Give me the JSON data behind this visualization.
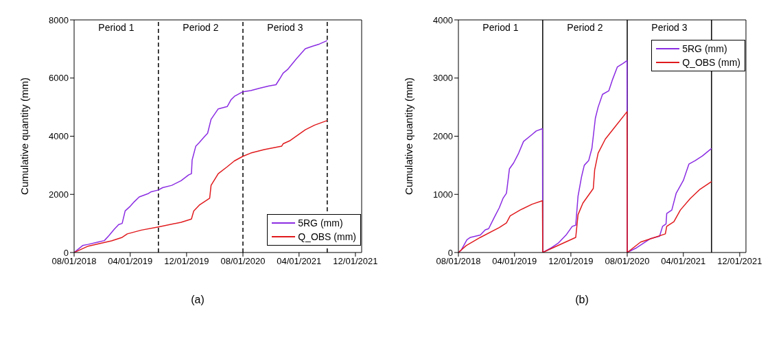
{
  "chart_data": [
    {
      "type": "line",
      "ylabel": "Cumulative quantity (mm)",
      "xlim": [
        "2018-08-01",
        "2021-12-28"
      ],
      "ylim": [
        0,
        8000
      ],
      "yticks": [
        0,
        2000,
        4000,
        6000,
        8000
      ],
      "xticks": [
        {
          "value": "2018-08-01",
          "label": "08/01/2018"
        },
        {
          "value": "2019-04-01",
          "label": "04/01/2019"
        },
        {
          "value": "2019-12-01",
          "label": "12/01/2019"
        },
        {
          "value": "2020-08-01",
          "label": "08/01/2020"
        },
        {
          "value": "2021-04-01",
          "label": "04/01/2021"
        },
        {
          "value": "2021-12-01",
          "label": "12/01/2021"
        }
      ],
      "legend": "bottom right",
      "grid": false,
      "line_style": "solid",
      "ref_lines": [
        {
          "axis": "x",
          "value": "2019-08-01",
          "label": "Period 1",
          "color": "#000000",
          "line_style": "dashed"
        },
        {
          "axis": "x",
          "value": "2020-08-01",
          "label": "Period 2",
          "color": "#000000",
          "line_style": "dashed"
        },
        {
          "axis": "x",
          "value": "2021-08-01",
          "label": "Period 3",
          "color": "#000000",
          "line_style": "dashed"
        }
      ],
      "annotations": [
        "(a)"
      ],
      "series": [
        {
          "name": "5RG (mm)",
          "color": "#8a2be2",
          "x": [
            "2018-08-01",
            "2018-09-07",
            "2018-10-01",
            "2018-11-13",
            "2018-12-10",
            "2019-01-01",
            "2019-01-22",
            "2019-02-10",
            "2019-02-25",
            "2019-03-10",
            "2019-04-01",
            "2019-04-19",
            "2019-05-10",
            "2019-06-19",
            "2019-07-01",
            "2019-08-01",
            "2019-08-19",
            "2019-09-28",
            "2019-11-07",
            "2019-12-10",
            "2019-12-22",
            "2019-12-25",
            "2020-01-10",
            "2020-01-25",
            "2020-02-16",
            "2020-03-01",
            "2020-03-16",
            "2020-04-16",
            "2020-05-25",
            "2020-06-10",
            "2020-06-25",
            "2020-08-01",
            "2020-09-04",
            "2020-10-13",
            "2020-11-22",
            "2020-12-22",
            "2021-01-07",
            "2021-01-22",
            "2021-02-10",
            "2021-03-19",
            "2021-04-28",
            "2021-05-28",
            "2021-06-28",
            "2021-08-01"
          ],
          "values": [
            0,
            240,
            280,
            360,
            410,
            600,
            800,
            960,
            1000,
            1430,
            1590,
            1750,
            1910,
            2030,
            2090,
            2150,
            2230,
            2310,
            2470,
            2670,
            2710,
            3180,
            3660,
            3780,
            3980,
            4100,
            4580,
            4940,
            5020,
            5250,
            5370,
            5530,
            5570,
            5650,
            5730,
            5770,
            5970,
            6170,
            6290,
            6650,
            7010,
            7090,
            7170,
            7290
          ]
        },
        {
          "name": "Q_OBS (mm)",
          "color": "#e0191c",
          "x": [
            "2018-08-01",
            "2018-10-01",
            "2019-01-10",
            "2019-02-25",
            "2019-03-19",
            "2019-05-19",
            "2019-08-01",
            "2019-11-07",
            "2019-12-22",
            "2020-01-01",
            "2020-01-25",
            "2020-03-10",
            "2020-03-16",
            "2020-04-16",
            "2020-05-25",
            "2020-06-25",
            "2020-08-01",
            "2020-09-04",
            "2020-11-01",
            "2021-01-16",
            "2021-01-22",
            "2021-02-19",
            "2021-04-28",
            "2021-06-07",
            "2021-08-01"
          ],
          "values": [
            0,
            220,
            400,
            520,
            640,
            770,
            880,
            1040,
            1150,
            1430,
            1630,
            1870,
            2310,
            2710,
            2950,
            3150,
            3310,
            3420,
            3540,
            3660,
            3740,
            3840,
            4220,
            4380,
            4540
          ]
        }
      ]
    },
    {
      "type": "line",
      "ylabel": "Cumulative quantity (mm)",
      "xlim": [
        "2018-08-01",
        "2021-12-28"
      ],
      "ylim": [
        0,
        4000
      ],
      "yticks": [
        0,
        1000,
        2000,
        3000,
        4000
      ],
      "xticks": [
        {
          "value": "2018-08-01",
          "label": "08/01/2018"
        },
        {
          "value": "2019-04-01",
          "label": "04/01/2019"
        },
        {
          "value": "2019-12-01",
          "label": "12/01/2019"
        },
        {
          "value": "2020-08-01",
          "label": "08/01/2020"
        },
        {
          "value": "2021-04-01",
          "label": "04/01/2021"
        },
        {
          "value": "2021-12-01",
          "label": "12/01/2021"
        }
      ],
      "legend": "top right",
      "grid": false,
      "line_style": "solid",
      "ref_lines": [
        {
          "axis": "x",
          "value": "2019-08-01",
          "label": "Period 1",
          "color": "#000000",
          "line_style": "solid"
        },
        {
          "axis": "x",
          "value": "2020-08-01",
          "label": "Period 2",
          "color": "#000000",
          "line_style": "solid"
        },
        {
          "axis": "x",
          "value": "2021-08-01",
          "label": "Period 3",
          "color": "#000000",
          "line_style": "solid"
        }
      ],
      "annotations": [
        "(b)"
      ],
      "series": [
        {
          "name": "5RG (mm)",
          "color": "#8a2be2",
          "x": [
            "2018-08-01",
            "2018-08-13",
            "2018-09-07",
            "2018-09-22",
            "2018-11-04",
            "2018-11-25",
            "2018-12-10",
            "2019-01-04",
            "2019-01-25",
            "2019-02-10",
            "2019-02-25",
            "2019-03-10",
            "2019-03-28",
            "2019-04-19",
            "2019-05-10",
            "2019-06-16",
            "2019-07-04",
            "2019-07-31",
            "2019-08-01",
            "2019-09-07",
            "2019-10-07",
            "2019-11-10",
            "2019-12-07",
            "2019-12-22",
            "2020-01-01",
            "2020-01-16",
            "2020-01-28",
            "2020-02-16",
            "2020-03-01",
            "2020-03-16",
            "2020-03-28",
            "2020-04-16",
            "2020-05-13",
            "2020-05-28",
            "2020-06-19",
            "2020-07-13",
            "2020-07-31",
            "2020-08-01",
            "2020-09-10",
            "2020-11-10",
            "2020-12-19",
            "2021-01-01",
            "2021-01-16",
            "2021-01-19",
            "2021-02-10",
            "2021-03-01",
            "2021-04-01",
            "2021-04-25",
            "2021-05-22",
            "2021-06-22",
            "2021-08-01"
          ],
          "values": [
            0,
            40,
            220,
            260,
            300,
            390,
            410,
            610,
            770,
            930,
            1020,
            1440,
            1540,
            1710,
            1910,
            2030,
            2090,
            2130,
            0,
            80,
            160,
            300,
            450,
            470,
            970,
            1300,
            1500,
            1580,
            1790,
            2310,
            2500,
            2720,
            2780,
            2960,
            3190,
            3250,
            3300,
            0,
            80,
            240,
            280,
            450,
            490,
            670,
            730,
            1020,
            1240,
            1520,
            1580,
            1660,
            1790
          ]
        },
        {
          "name": "Q_OBS (mm)",
          "color": "#e0191c",
          "x": [
            "2018-08-01",
            "2018-09-04",
            "2018-11-04",
            "2019-01-25",
            "2019-02-25",
            "2019-03-13",
            "2019-04-25",
            "2019-06-16",
            "2019-07-31",
            "2019-08-01",
            "2019-09-25",
            "2019-12-22",
            "2020-01-01",
            "2020-01-22",
            "2020-03-07",
            "2020-03-13",
            "2020-03-28",
            "2020-04-28",
            "2020-06-07",
            "2020-07-31",
            "2020-08-01",
            "2020-09-28",
            "2020-11-28",
            "2021-01-13",
            "2021-01-19",
            "2021-02-19",
            "2021-03-19",
            "2021-05-01",
            "2021-06-10",
            "2021-08-01"
          ],
          "values": [
            0,
            120,
            260,
            430,
            510,
            630,
            730,
            830,
            890,
            0,
            100,
            260,
            650,
            850,
            1100,
            1420,
            1710,
            1950,
            2150,
            2420,
            0,
            180,
            260,
            320,
            450,
            530,
            730,
            930,
            1080,
            1220
          ]
        }
      ]
    }
  ]
}
